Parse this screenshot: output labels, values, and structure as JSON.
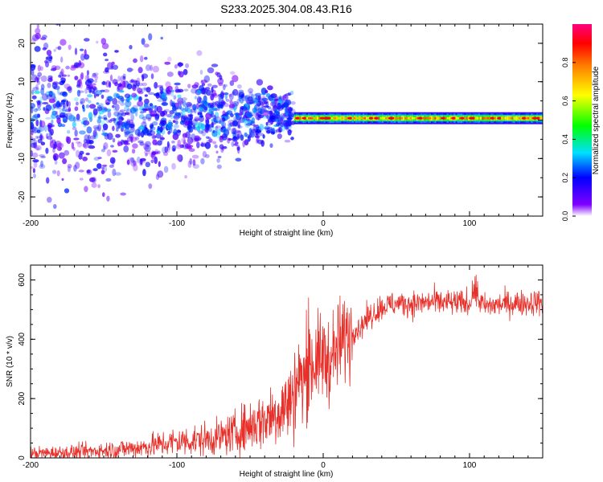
{
  "figure_title": "S233.2025.304.08.43.R16",
  "chart_data": [
    {
      "type": "heatmap",
      "panel": "top",
      "title": "",
      "xlabel": "Height of straight line (km)",
      "ylabel": "Frequency (Hz)",
      "xlim": [
        -200,
        150
      ],
      "ylim": [
        -25,
        25
      ],
      "x_ticks": [
        -200,
        -100,
        0,
        100
      ],
      "x_tick_labels": [
        "-200",
        "-100",
        "0",
        "100"
      ],
      "y_ticks": [
        -20,
        -10,
        0,
        10,
        20
      ],
      "y_tick_labels": [
        "-20",
        "-10",
        "0",
        "10",
        "20"
      ],
      "colorbar": {
        "label": "Normalized spectral amplitude",
        "range": [
          0,
          1
        ],
        "ticks": [
          0.0,
          0.2,
          0.4,
          0.6,
          0.8
        ],
        "tick_labels": [
          "0.0",
          "0.2",
          "0.4",
          "0.6",
          "0.8"
        ],
        "colors": [
          "#ffffff",
          "#8000ff",
          "#0000ff",
          "#00e0ff",
          "#00ff00",
          "#ffff00",
          "#ff8000",
          "#ff0000",
          "#ff0080"
        ]
      },
      "description_of_content": {
        "scattered_region": {
          "x_range": [
            -200,
            -20
          ],
          "freq_spread_hz": [
            -25,
            25
          ],
          "typical_amplitude": 0.1
        },
        "coherent_band": {
          "x_range": [
            -20,
            150
          ],
          "center_freq_hz": 0.5,
          "halfwidth_hz": 1.2,
          "peak_amplitude": 0.8
        }
      }
    },
    {
      "type": "line",
      "panel": "bottom",
      "title": "",
      "xlabel": "Height of straight line (km)",
      "ylabel": "SNR (10 * v/v)",
      "xlim": [
        -200,
        150
      ],
      "ylim": [
        0,
        650
      ],
      "x_ticks": [
        -200,
        -100,
        0,
        100
      ],
      "x_tick_labels": [
        "-200",
        "-100",
        "0",
        "100"
      ],
      "y_ticks": [
        0,
        200,
        400,
        600
      ],
      "y_tick_labels": [
        "0",
        "200",
        "400",
        "600"
      ],
      "series": [
        {
          "name": "SNR",
          "color": "#e8302a",
          "x": [
            -200,
            -175,
            -150,
            -125,
            -100,
            -85,
            -70,
            -60,
            -50,
            -40,
            -30,
            -20,
            -15,
            -10,
            -5,
            0,
            5,
            10,
            15,
            20,
            25,
            30,
            40,
            50,
            60,
            75,
            100,
            103,
            110,
            125,
            150
          ],
          "values": [
            15,
            18,
            25,
            35,
            55,
            60,
            70,
            85,
            110,
            130,
            160,
            200,
            260,
            300,
            330,
            340,
            330,
            370,
            410,
            430,
            440,
            470,
            510,
            520,
            520,
            525,
            520,
            555,
            510,
            520,
            525
          ]
        }
      ]
    }
  ]
}
